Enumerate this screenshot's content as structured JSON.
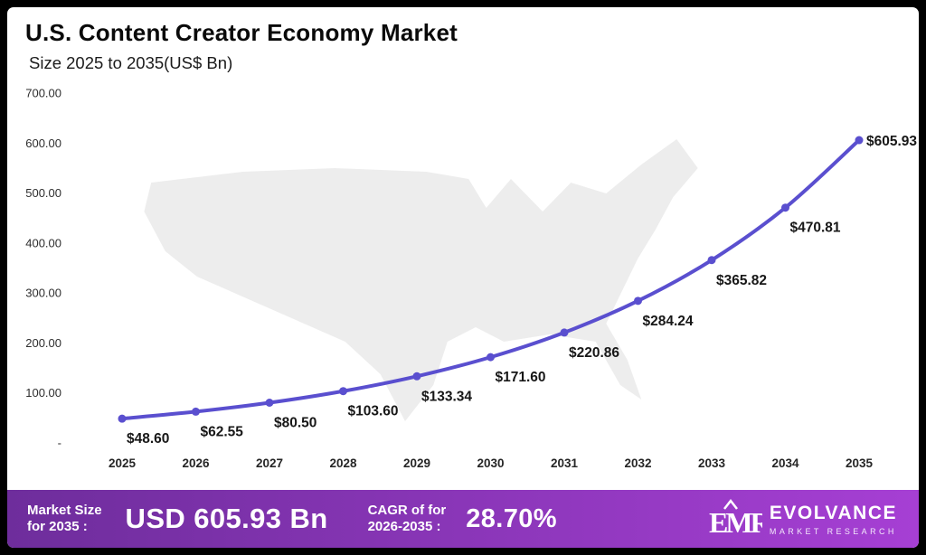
{
  "header": {
    "title": "U.S. Content Creator Economy Market",
    "subtitle": "Size 2025 to 2035(US$ Bn)"
  },
  "chart_data": {
    "type": "line",
    "title": "U.S. Content Creator Economy Market Size 2025 to 2035 (US$ Bn)",
    "xlabel": "",
    "ylabel": "",
    "x": [
      "2025",
      "2026",
      "2027",
      "2028",
      "2029",
      "2030",
      "2031",
      "2032",
      "2033",
      "2034",
      "2035"
    ],
    "values": [
      48.6,
      62.55,
      80.5,
      103.6,
      133.34,
      171.6,
      220.86,
      284.24,
      365.82,
      470.81,
      605.93
    ],
    "labels": [
      "$48.60",
      "$62.55",
      "$80.50",
      "$103.60",
      "$133.34",
      "$171.60",
      "$220.86",
      "$284.24",
      "$365.82",
      "$470.81",
      "$605.93"
    ],
    "ylim": [
      0,
      700
    ],
    "yticks": [
      {
        "value": 700,
        "label": "700.00"
      },
      {
        "value": 600,
        "label": "600.00"
      },
      {
        "value": 500,
        "label": "500.00"
      },
      {
        "value": 400,
        "label": "400.00"
      },
      {
        "value": 300,
        "label": "300.00"
      },
      {
        "value": 200,
        "label": "200.00"
      },
      {
        "value": 100,
        "label": "100.00"
      },
      {
        "value": 0,
        "label": "-"
      }
    ],
    "grid": false,
    "legend": "none",
    "line_color": "#5a4fcf",
    "marker": "circle"
  },
  "banner": {
    "market_size_label": "Market Size\nfor 2035 :",
    "market_size_value": "USD 605.93 Bn",
    "cagr_label": "CAGR of for\n2026-2035 :",
    "cagr_value": "28.70%",
    "brand_name": "EVOLVANCE",
    "brand_tagline": "MARKET RESEARCH",
    "gradient_from": "#6e2d9c",
    "gradient_to": "#a63fd4"
  },
  "colors": {
    "line": "#5a4fcf",
    "map_fill": "#ededed",
    "frame": "#000000",
    "background": "#ffffff"
  }
}
